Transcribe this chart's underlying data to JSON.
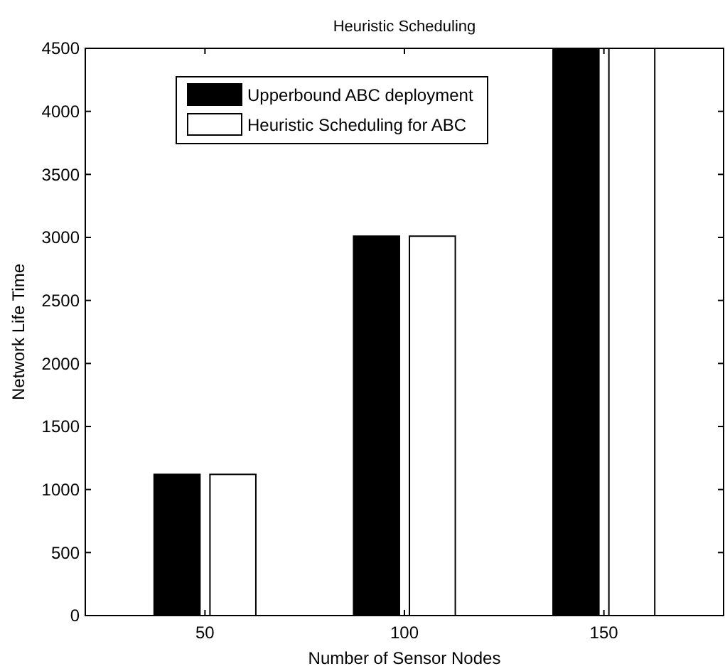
{
  "chart_data": {
    "type": "bar",
    "title": "Heuristic Scheduling",
    "xlabel": "Number of Sensor Nodes",
    "ylabel": "Network Life Time",
    "x": [
      50,
      100,
      150
    ],
    "xlim": [
      20,
      180
    ],
    "xticks": [
      50,
      100,
      150
    ],
    "ylim": [
      0,
      4500
    ],
    "yticks": [
      0,
      500,
      1000,
      1500,
      2000,
      2500,
      3000,
      3500,
      4000,
      4500
    ],
    "series": [
      {
        "name": "Upperbound ABC deployment",
        "color": "#000000",
        "values": [
          1120,
          3010,
          4500
        ]
      },
      {
        "name": "Heuristic Scheduling for ABC",
        "color": "#ffffff",
        "values": [
          1120,
          3010,
          4500
        ]
      }
    ],
    "legend": "top left",
    "grid": false
  }
}
